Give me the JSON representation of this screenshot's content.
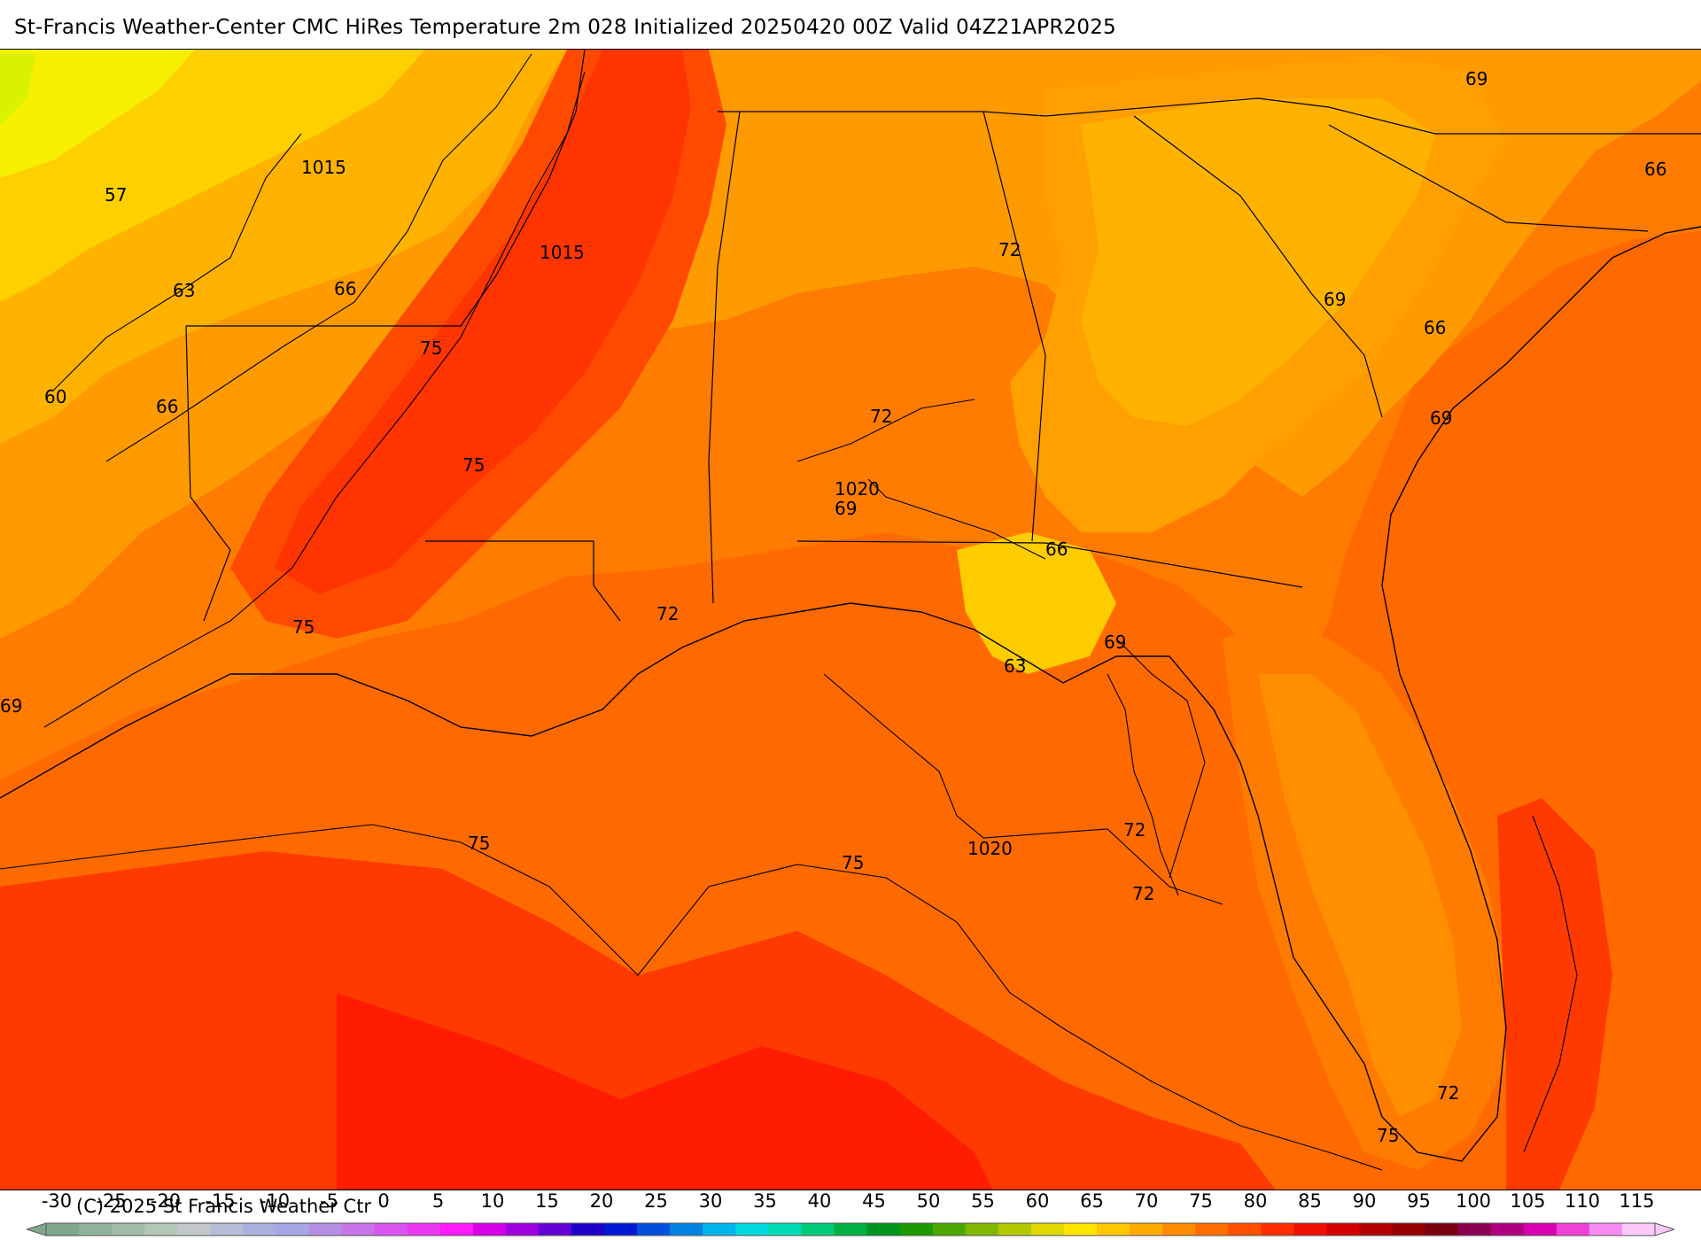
{
  "title": "St-Francis Weather-Center CMC HiRes Temperature 2m  028 Initialized 20250420 00Z Valid 04Z21APR2025",
  "map": {
    "isotherm_labels": [
      "57",
      "63",
      "66",
      "60",
      "66",
      "75",
      "75",
      "75",
      "1015",
      "1015",
      "72",
      "72",
      "69",
      "66",
      "69",
      "66",
      "69",
      "1020",
      "69",
      "66",
      "63",
      "69",
      "72",
      "72",
      "1020",
      "72",
      "75",
      "75",
      "72",
      "75",
      "69"
    ],
    "colors": {
      "c54": "#e6f200",
      "c57": "#f5f500",
      "c60": "#ffe800",
      "c63": "#ffd400",
      "c66": "#ffb000",
      "c69": "#ff9500",
      "c72": "#ff7a00",
      "c75": "#ff5a00",
      "c78": "#ff3b00",
      "c80": "#ff1e00",
      "ocean_warm": "#ff6a00"
    }
  },
  "colorbar": {
    "ticks": [
      "-30",
      "-25",
      "-20",
      "-15",
      "-10",
      "-5",
      "0",
      "5",
      "10",
      "15",
      "20",
      "25",
      "30",
      "35",
      "40",
      "45",
      "50",
      "55",
      "60",
      "65",
      "70",
      "75",
      "80",
      "85",
      "90",
      "95",
      "100",
      "105",
      "110",
      "115"
    ],
    "colors": [
      "#7fa88a",
      "#8fb39a",
      "#a0bdaa",
      "#b3c7b8",
      "#c2c8cc",
      "#b8bcd6",
      "#aab0dc",
      "#a7a7e6",
      "#b58fe3",
      "#c873e8",
      "#da55ef",
      "#ec37f2",
      "#ff1af8",
      "#d800e8",
      "#a000df",
      "#6400d6",
      "#1e00c8",
      "#0018d4",
      "#0050dc",
      "#0082e4",
      "#00b4ec",
      "#00d8e0",
      "#00dcb4",
      "#00cc78",
      "#00b040",
      "#00961e",
      "#1a9a00",
      "#4ca800",
      "#80b800",
      "#b4c800",
      "#e0d800",
      "#ffe600",
      "#ffc800",
      "#ffaa00",
      "#ff8c00",
      "#ff6e00",
      "#ff5000",
      "#ff2e00",
      "#f01000",
      "#d40000",
      "#b40000",
      "#960000",
      "#7a0010",
      "#8a0050",
      "#b00080",
      "#d800b0",
      "#f040d8",
      "#f78af0",
      "#fcc8fa"
    ],
    "copyright": "(C) 2025 St Francis Weather Ctr"
  }
}
